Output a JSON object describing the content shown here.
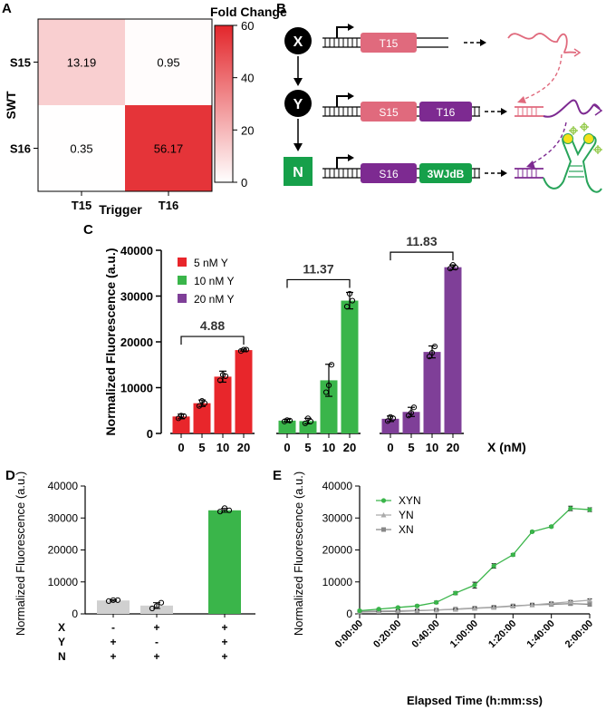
{
  "panel_labels": {
    "a": "A",
    "b": "B",
    "c": "C",
    "d": "D",
    "e": "E"
  },
  "chart_data": [
    {
      "panel": "A",
      "type": "heatmap",
      "title": "Fold Change",
      "xlabel": "Trigger",
      "ylabel": "SWT",
      "x_categories": [
        "T15",
        "T16"
      ],
      "y_categories": [
        "S15",
        "S16"
      ],
      "values": [
        [
          13.19,
          0.95
        ],
        [
          0.35,
          56.17
        ]
      ],
      "value_labels": [
        [
          "13.19",
          "0.95"
        ],
        [
          "0.35",
          "56.17"
        ]
      ],
      "colorbar": {
        "range": [
          0,
          60
        ],
        "ticks": [
          "0",
          "20",
          "40",
          "60"
        ],
        "low_color": "#ffffff",
        "high_color": "#e3262b"
      }
    },
    {
      "panel": "C",
      "type": "bar",
      "xlabel": "X (nM)",
      "ylabel": "Normalized Fluorescence (a.u.)",
      "ylim": [
        0,
        40000
      ],
      "y_ticks": [
        "0",
        "10000",
        "20000",
        "30000",
        "40000"
      ],
      "categories": [
        "0",
        "5",
        "10",
        "20"
      ],
      "series": [
        {
          "name": "5 nM Y",
          "color": "#e8262b",
          "values": [
            3700,
            6600,
            12400,
            18200
          ],
          "points": [
            [
              3300,
              3900,
              3800
            ],
            [
              6000,
              7100,
              6600
            ],
            [
              11600,
              12800,
              12500
            ],
            [
              18000,
              18300,
              18300
            ]
          ],
          "err": [
            500,
            700,
            1200,
            200
          ],
          "fold": "4.88"
        },
        {
          "name": "10 nM Y",
          "color": "#3ab54a",
          "values": [
            2800,
            2700,
            11600,
            29000
          ],
          "points": [
            [
              2600,
              2900,
              2800
            ],
            [
              2200,
              3300,
              2600
            ],
            [
              9000,
              10500,
              15000
            ],
            [
              27700,
              30500,
              29000
            ]
          ],
          "err": [
            300,
            600,
            3500,
            1800
          ],
          "fold": "11.37"
        },
        {
          "name": "20 nM Y",
          "color": "#7f3f98",
          "values": [
            3200,
            4700,
            17800,
            36300
          ],
          "points": [
            [
              2700,
              3600,
              3300
            ],
            [
              3900,
              4500,
              5700
            ],
            [
              16800,
              17600,
              19000
            ],
            [
              36000,
              36800,
              36200
            ]
          ],
          "err": [
            600,
            1000,
            1300,
            500
          ],
          "fold": "11.83"
        }
      ]
    },
    {
      "panel": "D",
      "type": "bar",
      "ylabel": "Normalized Fluorescence (a.u.)",
      "ylim": [
        0,
        40000
      ],
      "y_ticks": [
        "0",
        "10000",
        "20000",
        "30000",
        "40000"
      ],
      "bars": [
        {
          "value": 4200,
          "color": "#d0d0d0",
          "points": [
            4000,
            4300,
            4300
          ],
          "err": 200
        },
        {
          "value": 2600,
          "color": "#d0d0d0",
          "points": [
            1700,
            2500,
            3500
          ],
          "err": 900
        },
        {
          "value": 32400,
          "color": "#3ab54a",
          "points": [
            32000,
            33100,
            32400
          ],
          "err": 600
        }
      ],
      "condition_rows": [
        {
          "label": "X",
          "signs": [
            "-",
            "+",
            "+"
          ]
        },
        {
          "label": "Y",
          "signs": [
            "+",
            "-",
            "+"
          ]
        },
        {
          "label": "N",
          "signs": [
            "+",
            "+",
            "+"
          ]
        }
      ]
    },
    {
      "panel": "E",
      "type": "line",
      "xlabel": "Elapsed Time (h:mm:ss)",
      "ylabel": "Normalized Fluorescence (a.u.)",
      "xlim": [
        0,
        120
      ],
      "ylim": [
        0,
        40000
      ],
      "x_ticks": [
        "0:00:00",
        "0:20:00",
        "0:40:00",
        "1:00:00",
        "1:20:00",
        "1:40:00",
        "2:00:00"
      ],
      "y_ticks": [
        "0",
        "10000",
        "20000",
        "30000",
        "40000"
      ],
      "x": [
        0,
        10,
        20,
        30,
        40,
        50,
        60,
        70,
        80,
        90,
        100,
        110,
        120
      ],
      "series": [
        {
          "name": "XYN",
          "color": "#3ab54a",
          "marker": "circle",
          "values": [
            1000,
            1500,
            2000,
            2500,
            3600,
            6500,
            9000,
            15000,
            18500,
            25700,
            27300,
            33000,
            32600
          ],
          "err": [
            200,
            200,
            200,
            300,
            400,
            500,
            900,
            700,
            400,
            300,
            300,
            700,
            600
          ]
        },
        {
          "name": "YN",
          "color": "#aaaaaa",
          "marker": "triangle",
          "values": [
            900,
            900,
            1000,
            1100,
            1200,
            1400,
            1700,
            2000,
            2400,
            2800,
            3300,
            3800,
            4300
          ],
          "err": [
            200,
            200,
            200,
            200,
            200,
            200,
            300,
            300,
            300,
            300,
            400,
            400,
            400
          ]
        },
        {
          "name": "XN",
          "color": "#888888",
          "marker": "square",
          "values": [
            600,
            700,
            800,
            1000,
            1200,
            1500,
            1800,
            2100,
            2500,
            2800,
            3000,
            3200,
            3000
          ],
          "err": [
            200,
            200,
            200,
            300,
            300,
            300,
            300,
            400,
            400,
            400,
            500,
            500,
            600
          ]
        }
      ]
    }
  ],
  "schematic": {
    "nodes": [
      "X",
      "Y",
      "N"
    ],
    "row1_parts": [
      "T15"
    ],
    "row2_parts": [
      "S15",
      "T16"
    ],
    "row3_parts": [
      "S16",
      "3WJdB"
    ],
    "colors": {
      "trigger_pink": "#e06a7d",
      "switch_purple": "#7d2a91",
      "node_green": "#16a04a",
      "rna_green": "#28a45a",
      "ligand_yellow": "#f4e11a"
    }
  }
}
